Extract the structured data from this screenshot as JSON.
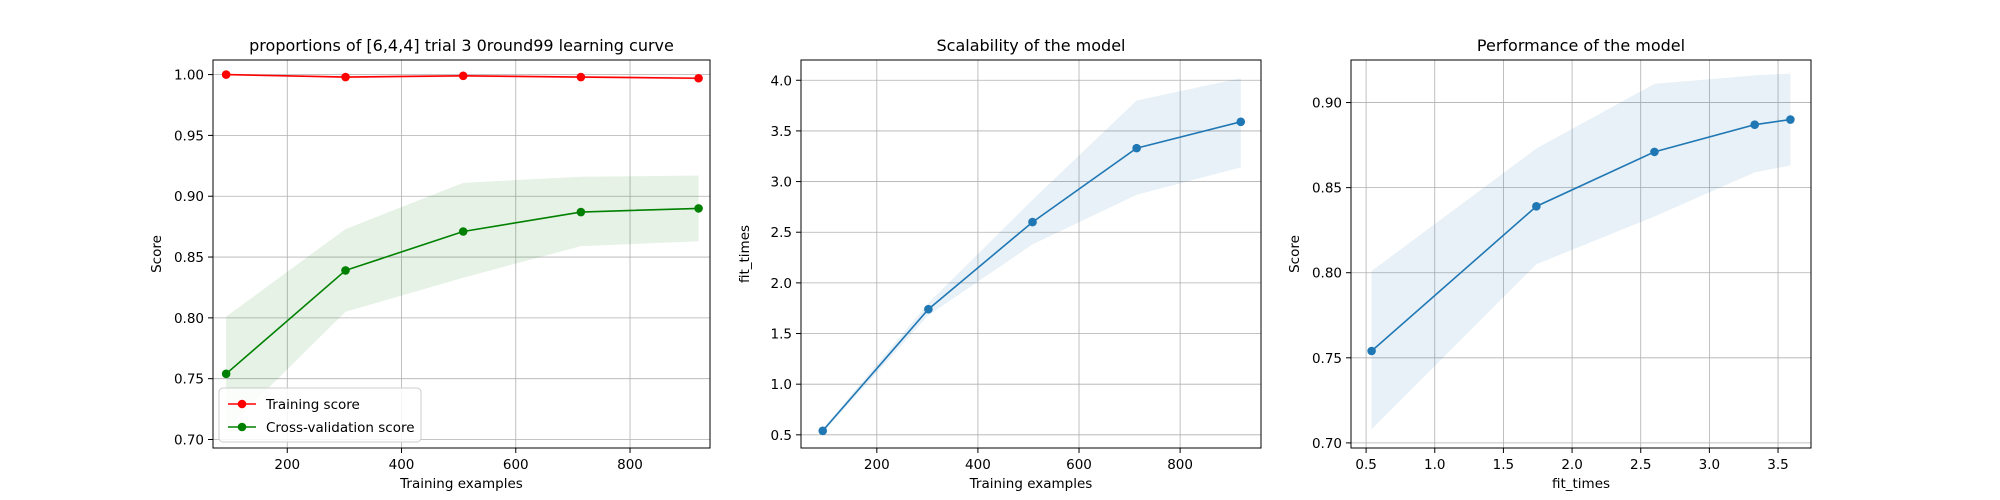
{
  "chart_data": [
    {
      "type": "line",
      "title": "proportions of [6,4,4] trial 3 0round99 learning curve",
      "xlabel": "Training examples",
      "ylabel": "Score",
      "xlim": [
        70,
        940
      ],
      "ylim": [
        0.693,
        1.012
      ],
      "xticks": [
        200,
        400,
        600,
        800
      ],
      "yticks": [
        0.7,
        0.75,
        0.8,
        0.85,
        0.9,
        0.95,
        1.0
      ],
      "grid": true,
      "legend": {
        "placement": "lower-left",
        "entries": [
          "Training score",
          "Cross-validation score"
        ]
      },
      "x": [
        93,
        302,
        508,
        714,
        920
      ],
      "series": [
        {
          "name": "Training score",
          "color": "#ff0000",
          "values": [
            1.0,
            0.998,
            0.999,
            0.998,
            0.997
          ],
          "band_lower": [
            1.0,
            0.997,
            0.998,
            0.997,
            0.996
          ],
          "band_upper": [
            1.0,
            0.999,
            1.0,
            0.999,
            0.998
          ]
        },
        {
          "name": "Cross-validation score",
          "color": "#008000",
          "values": [
            0.754,
            0.839,
            0.871,
            0.887,
            0.89
          ],
          "band_lower": [
            0.708,
            0.805,
            0.833,
            0.859,
            0.863
          ],
          "band_upper": [
            0.801,
            0.873,
            0.911,
            0.916,
            0.917
          ]
        }
      ]
    },
    {
      "type": "line",
      "title": "Scalability of the model",
      "xlabel": "Training examples",
      "ylabel": "fit_times",
      "xlim": [
        50,
        960
      ],
      "ylim": [
        0.37,
        4.2
      ],
      "xticks": [
        200,
        400,
        600,
        800
      ],
      "yticks": [
        0.5,
        1.0,
        1.5,
        2.0,
        2.5,
        3.0,
        3.5,
        4.0
      ],
      "grid": true,
      "x": [
        93,
        302,
        508,
        714,
        920
      ],
      "series": [
        {
          "color": "#1f77b4",
          "values": [
            0.54,
            1.74,
            2.6,
            3.33,
            3.59
          ],
          "band_lower": [
            0.52,
            1.68,
            2.38,
            2.87,
            3.14
          ],
          "band_upper": [
            0.56,
            1.8,
            2.82,
            3.8,
            4.02
          ]
        }
      ]
    },
    {
      "type": "line",
      "title": "Performance of the model",
      "xlabel": "fit_times",
      "ylabel": "Score",
      "xlim": [
        0.39,
        3.74
      ],
      "ylim": [
        0.697,
        0.925
      ],
      "xticks": [
        0.5,
        1.0,
        1.5,
        2.0,
        2.5,
        3.0,
        3.5
      ],
      "yticks": [
        0.7,
        0.75,
        0.8,
        0.85,
        0.9
      ],
      "grid": true,
      "x": [
        0.54,
        1.74,
        2.6,
        3.33,
        3.59
      ],
      "series": [
        {
          "color": "#1f77b4",
          "values": [
            0.754,
            0.839,
            0.871,
            0.887,
            0.89
          ],
          "band_lower": [
            0.708,
            0.805,
            0.833,
            0.859,
            0.863
          ],
          "band_upper": [
            0.801,
            0.873,
            0.911,
            0.916,
            0.917
          ]
        }
      ]
    }
  ]
}
